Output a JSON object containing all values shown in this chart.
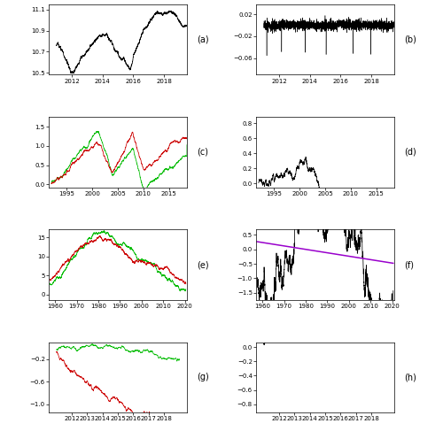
{
  "panels": [
    {
      "label": "(a)",
      "xlim": [
        2010.5,
        2019.5
      ],
      "ylim": [
        10.48,
        11.15
      ],
      "yticks": [
        10.5,
        10.7,
        10.9,
        11.1
      ],
      "xticks": [
        2012,
        2014,
        2016,
        2018
      ]
    },
    {
      "label": "(b)",
      "xlim": [
        2010.5,
        2019.5
      ],
      "ylim": [
        -0.09,
        0.038
      ],
      "yticks": [
        -0.06,
        -0.02,
        0.02
      ],
      "xticks": [
        2012,
        2014,
        2016,
        2018
      ]
    },
    {
      "label": "(c)",
      "xlim": [
        1991.5,
        2018.5
      ],
      "ylim": [
        -0.08,
        1.75
      ],
      "yticks": [
        0.0,
        0.5,
        1.0,
        1.5
      ],
      "xticks": [
        1995,
        2000,
        2005,
        2010,
        2015
      ]
    },
    {
      "label": "(d)",
      "xlim": [
        1991.5,
        2018.5
      ],
      "ylim": [
        -0.05,
        0.88
      ],
      "yticks": [
        0.0,
        0.2,
        0.4,
        0.6,
        0.8
      ],
      "xticks": [
        1995,
        2000,
        2005,
        2010,
        2015
      ]
    },
    {
      "label": "(e)",
      "xlim": [
        1957,
        2021
      ],
      "ylim": [
        -1.5,
        17.0
      ],
      "yticks": [
        0,
        5,
        10,
        15
      ],
      "xticks": [
        1960,
        1970,
        1980,
        1990,
        2000,
        2010,
        2020
      ]
    },
    {
      "label": "(f)",
      "xlim": [
        1957,
        2021
      ],
      "ylim": [
        -1.75,
        0.68
      ],
      "yticks": [
        -1.5,
        -1.0,
        -0.5,
        0.0,
        0.5
      ],
      "xticks": [
        1960,
        1970,
        1980,
        1990,
        2000,
        2010,
        2020
      ]
    },
    {
      "label": "(g)",
      "xlim": [
        2010.5,
        2019.5
      ],
      "ylim": [
        -1.15,
        0.1
      ],
      "yticks": [
        -1.0,
        -0.6,
        -0.2
      ],
      "xticks": [
        2012,
        2013,
        2014,
        2015,
        2016,
        2017,
        2018
      ]
    },
    {
      "label": "(h)",
      "xlim": [
        2010.5,
        2019.5
      ],
      "ylim": [
        -0.92,
        0.07
      ],
      "yticks": [
        -0.8,
        -0.6,
        -0.4,
        -0.2,
        0.0
      ],
      "xticks": [
        2012,
        2013,
        2014,
        2015,
        2016,
        2017,
        2018
      ]
    }
  ],
  "trend_color": "#9900CC",
  "green": "#00BB00",
  "red": "#CC0000",
  "black": "#000000",
  "lw_main": 0.55,
  "lw_trend": 1.1,
  "tick_fs": 5,
  "label_fs": 7
}
